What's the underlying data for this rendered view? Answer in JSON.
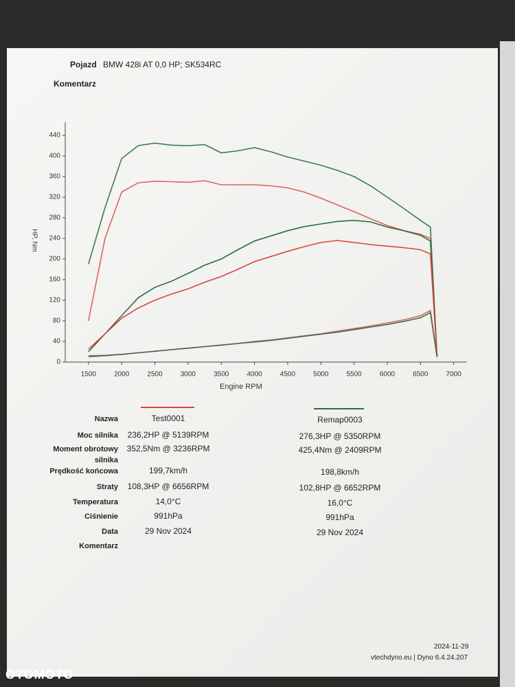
{
  "header": {
    "vehicle_label": "Pojazd",
    "vehicle": "BMW 428i AT 0,0 HP; SK534RC",
    "comment_label": "Komentarz"
  },
  "chart_data": {
    "type": "line",
    "x_label": "Engine RPM",
    "y_label": "HP, Nm",
    "x": [
      1500,
      1750,
      2000,
      2250,
      2500,
      2750,
      3000,
      3250,
      3500,
      3750,
      4000,
      4250,
      4500,
      4750,
      5000,
      5250,
      5500,
      5750,
      6000,
      6250,
      6500,
      6650,
      6750
    ],
    "series": [
      {
        "color": "#3d7a4e",
        "values": [
          190,
          300,
          395,
          420,
          425,
          421,
          420,
          422,
          406,
          410,
          416,
          408,
          398,
          390,
          382,
          372,
          360,
          342,
          320,
          298,
          275,
          262,
          10
        ]
      },
      {
        "color": "#d9655c",
        "values": [
          80,
          240,
          330,
          348,
          351,
          350,
          349,
          352,
          344,
          344,
          344,
          342,
          338,
          330,
          318,
          305,
          292,
          278,
          265,
          255,
          248,
          240,
          10
        ]
      },
      {
        "color": "#2f6b3f",
        "values": [
          20,
          55,
          90,
          125,
          145,
          157,
          172,
          188,
          200,
          218,
          235,
          245,
          255,
          263,
          268,
          273,
          275,
          272,
          262,
          255,
          246,
          235,
          10
        ]
      },
      {
        "color": "#d9453c",
        "values": [
          25,
          55,
          85,
          105,
          120,
          132,
          142,
          155,
          166,
          180,
          195,
          205,
          215,
          224,
          232,
          236,
          232,
          228,
          225,
          222,
          218,
          210,
          10
        ]
      },
      {
        "color": "#d9655c",
        "values": [
          10,
          12,
          15,
          18,
          21,
          24,
          27,
          30,
          33,
          36,
          40,
          43,
          47,
          51,
          55,
          60,
          65,
          70,
          76,
          82,
          90,
          100,
          10
        ]
      },
      {
        "color": "#3d6a4e",
        "values": [
          12,
          13,
          15,
          18,
          21,
          24,
          27,
          30,
          33,
          36,
          39,
          42,
          46,
          50,
          54,
          58,
          63,
          68,
          73,
          79,
          86,
          96,
          10
        ]
      }
    ],
    "xlim": [
      1150,
      7200
    ],
    "xticks": [
      1500,
      2000,
      2500,
      3000,
      3500,
      4000,
      4500,
      5000,
      5500,
      6000,
      6500,
      7000
    ],
    "ylim": [
      0,
      460
    ],
    "yticks": [
      0,
      40,
      80,
      120,
      160,
      200,
      240,
      280,
      320,
      360,
      400,
      440
    ],
    "grid": false
  },
  "table": {
    "rows": [
      [
        "Nazwa",
        "Test0001",
        "Remap0003"
      ],
      [
        "Moc silnika",
        "236,2HP @ 5139RPM",
        "276,3HP @ 5350RPM"
      ],
      [
        "Moment obrotowy silnika",
        "352,5Nm @ 3236RPM",
        "425,4Nm @ 2409RPM"
      ],
      [
        "Prędkość końcowa",
        "199,7km/h",
        "198,8km/h"
      ],
      [
        "Straty",
        "108,3HP @ 6656RPM",
        "102,8HP @ 6652RPM"
      ],
      [
        "Temperatura",
        "14,0°C",
        "16,0°C"
      ],
      [
        "Ciśnienie",
        "991hPa",
        "991hPa"
      ],
      [
        "Data",
        "29 Nov 2024",
        "29 Nov 2024"
      ],
      [
        "Komentarz"
      ]
    ]
  },
  "footer": {
    "date": "2024-11-29",
    "software": "vtechdyno.eu | Dyno 6.4.24.207"
  },
  "watermark": "OTOMOTO"
}
